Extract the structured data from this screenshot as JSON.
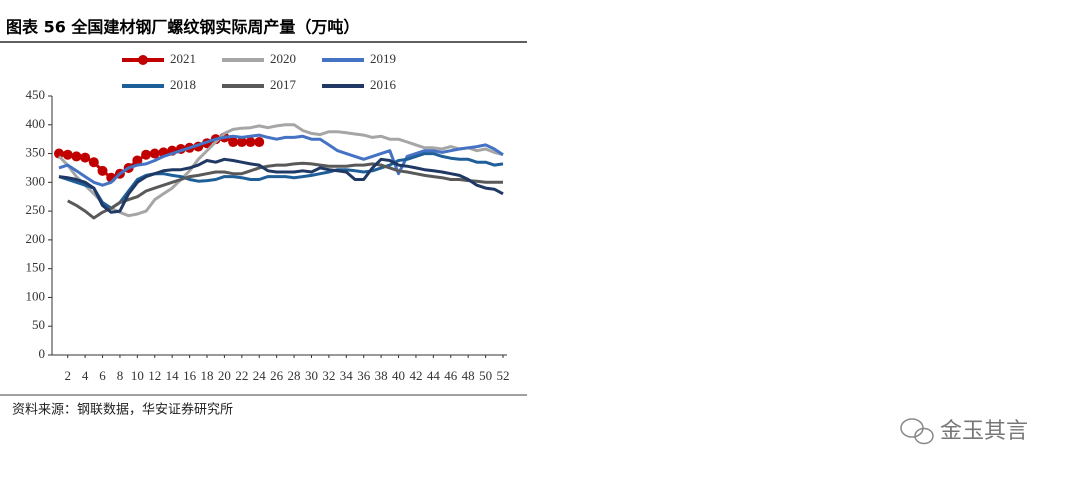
{
  "chart_data": {
    "type": "line",
    "title": "图表 56  全国建材钢厂螺纹钢实际周产量（万吨）",
    "source": "资料来源：钢联数据，华安证券研究所",
    "watermark": "金玉其言",
    "x": [
      1,
      2,
      3,
      4,
      5,
      6,
      7,
      8,
      9,
      10,
      11,
      12,
      13,
      14,
      15,
      16,
      17,
      18,
      19,
      20,
      21,
      22,
      23,
      24,
      25,
      26,
      27,
      28,
      29,
      30,
      31,
      32,
      33,
      34,
      35,
      36,
      37,
      38,
      39,
      40,
      41,
      42,
      43,
      44,
      45,
      46,
      47,
      48,
      49,
      50,
      51,
      52
    ],
    "xlim": [
      1,
      52
    ],
    "xticks": [
      2,
      4,
      6,
      8,
      10,
      12,
      14,
      16,
      18,
      20,
      22,
      24,
      26,
      28,
      30,
      32,
      34,
      36,
      38,
      40,
      42,
      44,
      46,
      48,
      50,
      52
    ],
    "ylim": [
      0,
      450
    ],
    "yticks": [
      0,
      50,
      100,
      150,
      200,
      250,
      300,
      350,
      400,
      450
    ],
    "series": [
      {
        "name": "2021",
        "color": "#c00000",
        "marker": "circle",
        "values": [
          350,
          348,
          345,
          343,
          335,
          320,
          308,
          315,
          325,
          338,
          348,
          350,
          352,
          355,
          358,
          360,
          362,
          368,
          375,
          378,
          370,
          370,
          370,
          370,
          null,
          null,
          null,
          null,
          null,
          null,
          null,
          null,
          null,
          null,
          null,
          null,
          null,
          null,
          null,
          null,
          null,
          null,
          null,
          null,
          null,
          null,
          null,
          null,
          null,
          null,
          null,
          null
        ]
      },
      {
        "name": "2020",
        "color": "#a6a6a6",
        "values": [
          345,
          330,
          310,
          295,
          280,
          265,
          255,
          248,
          242,
          245,
          250,
          270,
          280,
          290,
          305,
          320,
          340,
          355,
          370,
          385,
          392,
          394,
          395,
          398,
          395,
          398,
          400,
          400,
          390,
          385,
          383,
          388,
          388,
          386,
          384,
          382,
          378,
          380,
          375,
          375,
          370,
          365,
          360,
          360,
          358,
          362,
          358,
          360,
          355,
          358,
          352,
          348
        ]
      },
      {
        "name": "2019",
        "color": "#4472c4",
        "values": [
          325,
          330,
          320,
          310,
          300,
          295,
          300,
          315,
          325,
          330,
          332,
          338,
          345,
          350,
          355,
          360,
          365,
          370,
          375,
          378,
          380,
          378,
          380,
          382,
          378,
          375,
          378,
          378,
          380,
          375,
          375,
          365,
          355,
          350,
          345,
          340,
          345,
          350,
          355,
          315,
          345,
          350,
          355,
          355,
          352,
          355,
          358,
          360,
          362,
          365,
          358,
          348
        ]
      },
      {
        "name": "2018",
        "color": "#1f5f99",
        "values": [
          310,
          305,
          300,
          295,
          290,
          265,
          255,
          265,
          285,
          305,
          312,
          315,
          315,
          312,
          310,
          305,
          302,
          303,
          305,
          310,
          310,
          308,
          305,
          305,
          310,
          310,
          310,
          308,
          310,
          312,
          315,
          318,
          322,
          322,
          320,
          318,
          320,
          325,
          330,
          338,
          340,
          345,
          350,
          350,
          345,
          342,
          340,
          340,
          335,
          335,
          330,
          332
        ]
      },
      {
        "name": "2017",
        "color": "#595959",
        "values": [
          null,
          268,
          260,
          250,
          238,
          248,
          255,
          265,
          270,
          275,
          285,
          290,
          295,
          300,
          305,
          310,
          312,
          315,
          318,
          318,
          315,
          315,
          320,
          325,
          328,
          330,
          330,
          332,
          333,
          332,
          330,
          328,
          328,
          328,
          330,
          330,
          332,
          330,
          325,
          320,
          318,
          315,
          312,
          310,
          308,
          305,
          305,
          303,
          302,
          300,
          300,
          300
        ]
      },
      {
        "name": "2016",
        "color": "#1f3864",
        "values": [
          310,
          308,
          305,
          300,
          290,
          260,
          248,
          250,
          280,
          300,
          310,
          315,
          320,
          322,
          322,
          325,
          330,
          338,
          335,
          340,
          338,
          335,
          332,
          330,
          320,
          318,
          318,
          318,
          320,
          318,
          325,
          322,
          320,
          318,
          305,
          305,
          325,
          340,
          338,
          330,
          328,
          325,
          322,
          320,
          318,
          315,
          312,
          305,
          295,
          290,
          288,
          280
        ]
      }
    ]
  }
}
